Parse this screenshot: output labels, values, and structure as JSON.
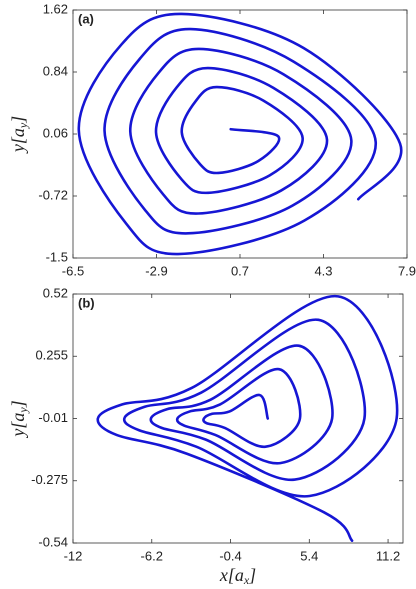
{
  "chart_data": [
    {
      "type": "line",
      "panel_label": "(a)",
      "ylabel": {
        "text": "y[a",
        "subscript": "y",
        "suffix": "]"
      },
      "xlim": [
        -6.5,
        7.9
      ],
      "ylim": [
        -1.5,
        1.62
      ],
      "xticks": [
        -6.5,
        -2.9,
        0.7,
        4.3,
        7.9
      ],
      "yticks": [
        1.62,
        0.84,
        0.06,
        -0.72,
        -1.5
      ],
      "color": "#1616d4",
      "x": [
        0.3,
        2.35,
        1.49,
        -0.23,
        -1.02,
        -1.81,
        -1.22,
        -0.31,
        1.71,
        3.4,
        1.98,
        -0.67,
        -1.82,
        -2.92,
        -2.02,
        -0.68,
        2.14,
        4.45,
        2.48,
        -1.1,
        -2.61,
        -4.03,
        -2.81,
        -1.06,
        2.58,
        5.5,
        2.97,
        -1.54,
        -3.41,
        -5.14,
        -3.61,
        -1.43,
        3.01,
        6.55,
        3.47,
        -1.97,
        -4.2,
        -6.25,
        -4.4,
        -1.81,
        3.45,
        7.6,
        5.8
      ],
      "values": [
        0.12,
        0.03,
        -0.28,
        -0.43,
        -0.32,
        0.08,
        0.47,
        0.65,
        0.48,
        0.01,
        -0.46,
        -0.68,
        -0.51,
        0.08,
        0.65,
        0.89,
        0.64,
        -0.01,
        -0.65,
        -0.94,
        -0.7,
        0.09,
        0.83,
        1.13,
        0.81,
        -0.02,
        -0.84,
        -1.19,
        -0.89,
        0.1,
        1.01,
        1.38,
        0.97,
        -0.04,
        -1.03,
        -1.45,
        -1.07,
        0.11,
        1.19,
        1.57,
        1.14,
        -0.06,
        -0.76
      ]
    },
    {
      "type": "line",
      "panel_label": "(b)",
      "xlabel": {
        "text": "x[a",
        "subscript": "x",
        "suffix": "]"
      },
      "ylabel": {
        "text": "y[a",
        "subscript": "y",
        "suffix": "]"
      },
      "xlim": [
        -12,
        12.3
      ],
      "ylim": [
        -0.54,
        0.52
      ],
      "xticks": [
        -12,
        -6.2,
        -0.4,
        5.4,
        11.2
      ],
      "yticks": [
        0.52,
        0.255,
        -0.01,
        -0.275,
        -0.54
      ],
      "color": "#1616d4",
      "x": [
        2.34,
        1.73,
        -0.47,
        -1.75,
        -2.36,
        -2.16,
        -0.82,
        2.18,
        4.71,
        3.17,
        -1.17,
        -3.4,
        -4.31,
        -3.82,
        -1.52,
        3.26,
        7.08,
        4.62,
        -1.87,
        -5.06,
        -6.26,
        -5.47,
        -2.22,
        4.34,
        9.46,
        6.07,
        -2.57,
        -6.72,
        -8.22,
        -7.13,
        -2.92,
        5.42,
        11.83,
        7.52,
        -3.26,
        -8.37,
        -10.17,
        -8.79,
        -3.61,
        6.5,
        8.55
      ],
      "values": [
        -0.01,
        0.09,
        0.02,
        0.01,
        -0.01,
        -0.03,
        -0.05,
        -0.13,
        -0.01,
        0.2,
        0.05,
        0.02,
        -0.01,
        -0.04,
        -0.08,
        -0.2,
        -0.01,
        0.3,
        0.07,
        0.03,
        -0.01,
        -0.05,
        -0.1,
        -0.27,
        -0.01,
        0.41,
        0.1,
        0.04,
        -0.01,
        -0.06,
        -0.13,
        -0.34,
        -0.01,
        0.51,
        0.12,
        0.05,
        -0.01,
        -0.08,
        -0.16,
        -0.41,
        -0.53
      ]
    }
  ]
}
